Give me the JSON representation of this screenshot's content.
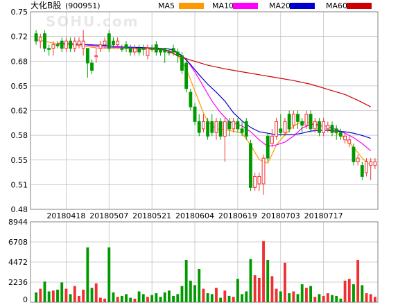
{
  "chart_data": {
    "type": "candlestick",
    "title": "大化B股",
    "code": "(900951)",
    "watermark": "SOHU.com",
    "legend": [
      {
        "name": "MA5",
        "color": "#FF9900"
      },
      {
        "name": "MA10",
        "color": "#FF00FF"
      },
      {
        "name": "MA20",
        "color": "#0000CC"
      },
      {
        "name": "MA60",
        "color": "#CC0000"
      }
    ],
    "colors": {
      "up": "#F03030",
      "down": "#009900",
      "grid": "#C0C0C0",
      "frame": "#808080"
    },
    "price_axis": {
      "ticks": [
        "0.75",
        "0.72",
        "0.68",
        "0.65",
        "0.62",
        "0.58",
        "0.55",
        "0.51",
        "0.48"
      ],
      "min": 0.48,
      "max": 0.75
    },
    "volume_axis": {
      "ticks": [
        "8944",
        "6708",
        "4472",
        "2236",
        "0"
      ],
      "min": 0,
      "max": 8944
    },
    "x_labels": [
      "20180418",
      "20180507",
      "20180521",
      "20180604",
      "20180619",
      "20180703",
      "20180717"
    ],
    "x_label_index": [
      7,
      17,
      27,
      37,
      47,
      57,
      67
    ],
    "candles": [
      [
        0.72,
        0.71,
        0.725,
        0.705,
        1100,
        "d"
      ],
      [
        0.71,
        0.715,
        0.72,
        0.7,
        1500,
        "u"
      ],
      [
        0.72,
        0.7,
        0.725,
        0.695,
        2300,
        "d"
      ],
      [
        0.7,
        0.7,
        0.705,
        0.69,
        1200,
        "d"
      ],
      [
        0.7,
        0.705,
        0.71,
        0.69,
        1300,
        "u"
      ],
      [
        0.705,
        0.705,
        0.71,
        0.7,
        1400,
        "d"
      ],
      [
        0.71,
        0.7,
        0.715,
        0.695,
        2200,
        "d"
      ],
      [
        0.7,
        0.71,
        0.715,
        0.695,
        1500,
        "u"
      ],
      [
        0.71,
        0.7,
        0.715,
        0.695,
        900,
        "d"
      ],
      [
        0.7,
        0.71,
        0.715,
        0.695,
        1800,
        "u"
      ],
      [
        0.705,
        0.71,
        0.715,
        0.7,
        700,
        "u"
      ],
      [
        0.71,
        0.7,
        0.725,
        0.69,
        1400,
        "u"
      ],
      [
        0.7,
        0.68,
        0.7,
        0.66,
        6100,
        "d"
      ],
      [
        0.68,
        0.67,
        0.685,
        0.665,
        1600,
        "d"
      ],
      [
        0.69,
        0.69,
        0.7,
        0.68,
        2100,
        "u"
      ],
      [
        0.7,
        0.705,
        0.71,
        0.695,
        500,
        "u"
      ],
      [
        0.705,
        0.71,
        0.715,
        0.7,
        400,
        "u"
      ],
      [
        0.72,
        0.7,
        0.725,
        0.695,
        6100,
        "d"
      ],
      [
        0.71,
        0.705,
        0.715,
        0.7,
        1100,
        "d"
      ],
      [
        0.705,
        0.71,
        0.715,
        0.7,
        600,
        "u"
      ],
      [
        0.7,
        0.7,
        0.705,
        0.695,
        700,
        "d"
      ],
      [
        0.705,
        0.7,
        0.71,
        0.695,
        900,
        "d"
      ],
      [
        0.7,
        0.695,
        0.705,
        0.69,
        500,
        "d"
      ],
      [
        0.695,
        0.7,
        0.705,
        0.69,
        400,
        "u"
      ],
      [
        0.7,
        0.695,
        0.705,
        0.69,
        1200,
        "d"
      ],
      [
        0.7,
        0.7,
        0.705,
        0.69,
        900,
        "d"
      ],
      [
        0.69,
        0.7,
        0.705,
        0.685,
        600,
        "u"
      ],
      [
        0.7,
        0.7,
        0.705,
        0.695,
        800,
        "d"
      ],
      [
        0.705,
        0.695,
        0.71,
        0.69,
        1000,
        "d"
      ],
      [
        0.7,
        0.695,
        0.7,
        0.69,
        600,
        "d"
      ],
      [
        0.7,
        0.695,
        0.7,
        0.68,
        1100,
        "d"
      ],
      [
        0.695,
        0.695,
        0.7,
        0.69,
        1300,
        "d"
      ],
      [
        0.7,
        0.695,
        0.705,
        0.69,
        700,
        "d"
      ],
      [
        0.695,
        0.69,
        0.7,
        0.68,
        900,
        "d"
      ],
      [
        0.69,
        0.67,
        0.695,
        0.665,
        1800,
        "d"
      ],
      [
        0.68,
        0.645,
        0.685,
        0.64,
        4700,
        "d"
      ],
      [
        0.64,
        0.62,
        0.645,
        0.615,
        2400,
        "d"
      ],
      [
        0.62,
        0.6,
        0.625,
        0.595,
        1900,
        "d"
      ],
      [
        0.6,
        0.585,
        0.61,
        0.58,
        3700,
        "d"
      ],
      [
        0.59,
        0.6,
        0.61,
        0.585,
        1500,
        "u"
      ],
      [
        0.6,
        0.58,
        0.605,
        0.575,
        1000,
        "d"
      ],
      [
        0.6,
        0.585,
        0.61,
        0.58,
        900,
        "d"
      ],
      [
        0.585,
        0.6,
        0.605,
        0.575,
        1600,
        "u"
      ],
      [
        0.6,
        0.58,
        0.605,
        0.575,
        500,
        "d"
      ],
      [
        0.58,
        0.6,
        0.605,
        0.545,
        1300,
        "u"
      ],
      [
        0.6,
        0.59,
        0.605,
        0.58,
        700,
        "d"
      ],
      [
        0.59,
        0.6,
        0.605,
        0.585,
        600,
        "u"
      ],
      [
        0.6,
        0.59,
        0.605,
        0.585,
        2600,
        "d"
      ],
      [
        0.59,
        0.585,
        0.6,
        0.58,
        900,
        "d"
      ],
      [
        0.6,
        0.58,
        0.605,
        0.575,
        1200,
        "d"
      ],
      [
        0.57,
        0.51,
        0.575,
        0.505,
        4800,
        "d"
      ],
      [
        0.51,
        0.525,
        0.53,
        0.505,
        3000,
        "u"
      ],
      [
        0.525,
        0.515,
        0.53,
        0.505,
        2700,
        "u"
      ],
      [
        0.515,
        0.55,
        0.555,
        0.5,
        6800,
        "u"
      ],
      [
        0.55,
        0.58,
        0.585,
        0.545,
        4700,
        "d"
      ],
      [
        0.57,
        0.58,
        0.59,
        0.565,
        2900,
        "u"
      ],
      [
        0.58,
        0.6,
        0.605,
        0.575,
        1500,
        "u"
      ],
      [
        0.59,
        0.585,
        0.61,
        0.58,
        1200,
        "d"
      ],
      [
        0.585,
        0.6,
        0.605,
        0.58,
        4400,
        "u"
      ],
      [
        0.61,
        0.59,
        0.615,
        0.585,
        1000,
        "d"
      ],
      [
        0.595,
        0.61,
        0.615,
        0.59,
        1200,
        "u"
      ],
      [
        0.61,
        0.6,
        0.615,
        0.59,
        900,
        "d"
      ],
      [
        0.6,
        0.595,
        0.605,
        0.585,
        2000,
        "d"
      ],
      [
        0.595,
        0.61,
        0.615,
        0.59,
        1600,
        "u"
      ],
      [
        0.61,
        0.59,
        0.615,
        0.585,
        1800,
        "d"
      ],
      [
        0.59,
        0.6,
        0.605,
        0.585,
        600,
        "u"
      ],
      [
        0.6,
        0.585,
        0.605,
        0.58,
        900,
        "d"
      ],
      [
        0.585,
        0.6,
        0.605,
        0.58,
        700,
        "u"
      ],
      [
        0.59,
        0.595,
        0.6,
        0.585,
        1000,
        "u"
      ],
      [
        0.595,
        0.585,
        0.6,
        0.58,
        800,
        "d"
      ],
      [
        0.585,
        0.59,
        0.595,
        0.575,
        700,
        "d"
      ],
      [
        0.585,
        0.58,
        0.59,
        0.575,
        400,
        "d"
      ],
      [
        0.575,
        0.58,
        0.585,
        0.57,
        2400,
        "u"
      ],
      [
        0.575,
        0.57,
        0.58,
        0.565,
        2600,
        "u"
      ],
      [
        0.565,
        0.545,
        0.57,
        0.54,
        2000,
        "d"
      ],
      [
        0.55,
        0.545,
        0.555,
        0.54,
        4700,
        "u"
      ],
      [
        0.54,
        0.525,
        0.545,
        0.52,
        1900,
        "d"
      ],
      [
        0.53,
        0.545,
        0.55,
        0.525,
        1000,
        "u"
      ],
      [
        0.545,
        0.54,
        0.55,
        0.52,
        900,
        "u"
      ],
      [
        0.54,
        0.545,
        0.55,
        0.535,
        600,
        "u"
      ]
    ],
    "ma5": [
      [
        0,
        0.712
      ],
      [
        5,
        0.706
      ],
      [
        10,
        0.704
      ],
      [
        15,
        0.7
      ],
      [
        20,
        0.7
      ],
      [
        25,
        0.699
      ],
      [
        30,
        0.698
      ],
      [
        33,
        0.69
      ],
      [
        35,
        0.672
      ],
      [
        37,
        0.642
      ],
      [
        39,
        0.612
      ],
      [
        40,
        0.6
      ],
      [
        42,
        0.59
      ],
      [
        45,
        0.588
      ],
      [
        48,
        0.584
      ],
      [
        50,
        0.568
      ],
      [
        52,
        0.548
      ],
      [
        54,
        0.543
      ],
      [
        55,
        0.555
      ],
      [
        56,
        0.568
      ],
      [
        58,
        0.582
      ],
      [
        60,
        0.594
      ],
      [
        62,
        0.6
      ],
      [
        64,
        0.598
      ],
      [
        66,
        0.594
      ],
      [
        68,
        0.59
      ],
      [
        70,
        0.584
      ],
      [
        72,
        0.577
      ],
      [
        74,
        0.565
      ],
      [
        76,
        0.55
      ],
      [
        78,
        0.54
      ]
    ],
    "ma10": [
      [
        5,
        0.707
      ],
      [
        10,
        0.706
      ],
      [
        15,
        0.702
      ],
      [
        20,
        0.701
      ],
      [
        25,
        0.7
      ],
      [
        30,
        0.698
      ],
      [
        33,
        0.694
      ],
      [
        35,
        0.685
      ],
      [
        37,
        0.668
      ],
      [
        39,
        0.648
      ],
      [
        41,
        0.628
      ],
      [
        43,
        0.612
      ],
      [
        45,
        0.6
      ],
      [
        48,
        0.594
      ],
      [
        50,
        0.586
      ],
      [
        52,
        0.575
      ],
      [
        54,
        0.566
      ],
      [
        56,
        0.568
      ],
      [
        58,
        0.572
      ],
      [
        60,
        0.58
      ],
      [
        62,
        0.591
      ],
      [
        64,
        0.596
      ],
      [
        66,
        0.596
      ],
      [
        68,
        0.593
      ],
      [
        70,
        0.589
      ],
      [
        72,
        0.584
      ],
      [
        74,
        0.578
      ],
      [
        76,
        0.57
      ],
      [
        78,
        0.56
      ]
    ],
    "ma20": [
      [
        8,
        0.706
      ],
      [
        12,
        0.705
      ],
      [
        16,
        0.704
      ],
      [
        20,
        0.702
      ],
      [
        25,
        0.701
      ],
      [
        30,
        0.7
      ],
      [
        32,
        0.698
      ],
      [
        34,
        0.69
      ],
      [
        36,
        0.678
      ],
      [
        38,
        0.664
      ],
      [
        40,
        0.651
      ],
      [
        42,
        0.64
      ],
      [
        44,
        0.628
      ],
      [
        46,
        0.612
      ],
      [
        48,
        0.601
      ],
      [
        50,
        0.592
      ],
      [
        52,
        0.586
      ],
      [
        54,
        0.584
      ],
      [
        56,
        0.582
      ],
      [
        58,
        0.582
      ],
      [
        60,
        0.582
      ],
      [
        62,
        0.584
      ],
      [
        64,
        0.587
      ],
      [
        66,
        0.588
      ],
      [
        68,
        0.588
      ],
      [
        70,
        0.587
      ],
      [
        72,
        0.586
      ],
      [
        74,
        0.584
      ],
      [
        76,
        0.581
      ],
      [
        78,
        0.577
      ]
    ],
    "ma60": [
      [
        25,
        0.701
      ],
      [
        28,
        0.7
      ],
      [
        31,
        0.696
      ],
      [
        33,
        0.69
      ],
      [
        36,
        0.684
      ],
      [
        40,
        0.677
      ],
      [
        44,
        0.672
      ],
      [
        48,
        0.668
      ],
      [
        52,
        0.664
      ],
      [
        56,
        0.66
      ],
      [
        60,
        0.656
      ],
      [
        64,
        0.651
      ],
      [
        68,
        0.644
      ],
      [
        72,
        0.637
      ],
      [
        75,
        0.629
      ],
      [
        78,
        0.62
      ]
    ]
  }
}
